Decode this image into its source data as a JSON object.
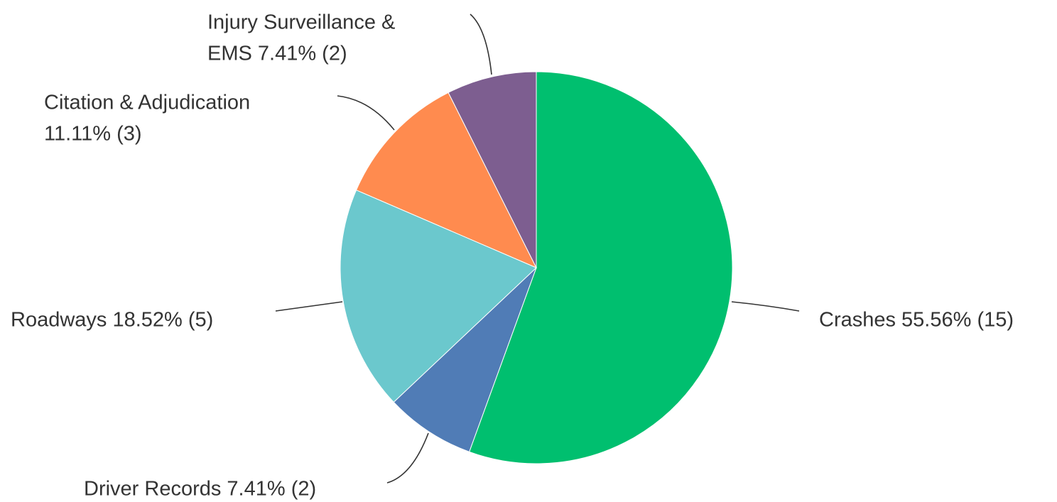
{
  "chart_data": {
    "type": "pie",
    "values": [
      55.56,
      7.41,
      18.52,
      11.11,
      7.41
    ],
    "value_labels": [
      [
        "Crashes 55.56% (15)"
      ],
      [
        "Driver Records 7.41% (2)"
      ],
      [
        "Roadways 18.52% (5)"
      ],
      [
        "Citation & Adjudication",
        "11.11% (3)"
      ],
      [
        "Injury Surveillance &",
        "EMS 7.41% (2)"
      ]
    ],
    "colors": [
      "#00bf6f",
      "#507cb6",
      "#6bc8cd",
      "#ff8b4f",
      "#7d5e90"
    ]
  }
}
